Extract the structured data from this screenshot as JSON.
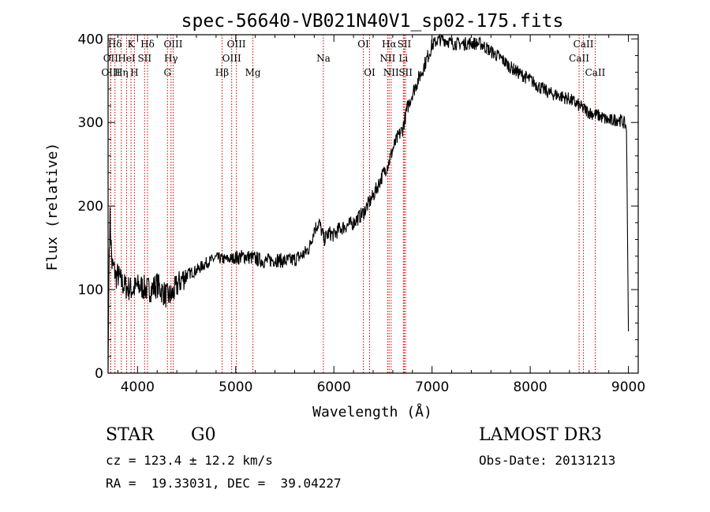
{
  "chart_data": {
    "type": "line",
    "title": "spec-56640-VB021N40V1_sp02-175.fits",
    "xlabel": "Wavelength (Å)",
    "ylabel": "Flux (relative)",
    "xlim": [
      3700,
      9100
    ],
    "ylim": [
      0,
      405
    ],
    "xticks": [
      4000,
      5000,
      6000,
      7000,
      8000,
      9000
    ],
    "yticks": [
      0,
      100,
      200,
      300,
      400
    ],
    "grid": false,
    "series": [
      {
        "name": "spectrum",
        "color": "#000000",
        "x": [
          3700,
          3710,
          3720,
          3740,
          3760,
          3780,
          3800,
          3830,
          3860,
          3900,
          3950,
          4000,
          4050,
          4100,
          4150,
          4200,
          4250,
          4300,
          4350,
          4400,
          4450,
          4500,
          4600,
          4700,
          4800,
          4900,
          5000,
          5100,
          5200,
          5300,
          5400,
          5500,
          5600,
          5700,
          5750,
          5800,
          5850,
          5900,
          5950,
          6000,
          6050,
          6100,
          6200,
          6300,
          6400,
          6500,
          6560,
          6600,
          6650,
          6700,
          6750,
          6800,
          6900,
          7000,
          7050,
          7100,
          7150,
          7200,
          7300,
          7400,
          7500,
          7600,
          7700,
          7800,
          7900,
          8000,
          8100,
          8200,
          8300,
          8400,
          8500,
          8600,
          8700,
          8800,
          8900,
          8950,
          8980,
          9000
        ],
        "y": [
          5,
          140,
          185,
          130,
          125,
          115,
          118,
          110,
          105,
          102,
          100,
          104,
          103,
          100,
          101,
          106,
          98,
          92,
          93,
          104,
          112,
          118,
          123,
          132,
          138,
          136,
          138,
          140,
          137,
          134,
          136,
          134,
          136,
          143,
          150,
          172,
          180,
          160,
          168,
          165,
          172,
          175,
          180,
          192,
          212,
          238,
          252,
          268,
          282,
          292,
          318,
          335,
          362,
          392,
          398,
          400,
          398,
          395,
          394,
          395,
          394,
          385,
          377,
          366,
          358,
          351,
          342,
          335,
          332,
          328,
          320,
          312,
          308,
          302,
          304,
          300,
          295,
          50
        ]
      }
    ],
    "spectral_lines": [
      {
        "label": "Hδ",
        "wavelength": 3770,
        "row": 1
      },
      {
        "label": "K",
        "wavelength": 3934,
        "row": 1
      },
      {
        "label": "Hδ",
        "wavelength": 4102,
        "row": 1
      },
      {
        "label": "OIII",
        "wavelength": 4363,
        "row": 1
      },
      {
        "label": "OIII",
        "wavelength": 5007,
        "row": 1
      },
      {
        "label": "OI",
        "wavelength": 6300,
        "row": 1
      },
      {
        "label": "Hα",
        "wavelength": 6563,
        "row": 1
      },
      {
        "label": "SII",
        "wavelength": 6717,
        "row": 1
      },
      {
        "label": "CaII",
        "wavelength": 8542,
        "row": 1
      },
      {
        "label": "OII",
        "wavelength": 3727,
        "row": 2
      },
      {
        "label": "HeI",
        "wavelength": 3889,
        "row": 2
      },
      {
        "label": "SII",
        "wavelength": 4072,
        "row": 2
      },
      {
        "label": "Hγ",
        "wavelength": 4341,
        "row": 2
      },
      {
        "label": "OIII",
        "wavelength": 4959,
        "row": 2
      },
      {
        "label": "Na",
        "wavelength": 5893,
        "row": 2
      },
      {
        "label": "NII",
        "wavelength": 6548,
        "row": 2
      },
      {
        "label": "Li",
        "wavelength": 6708,
        "row": 2
      },
      {
        "label": "CaII",
        "wavelength": 8498,
        "row": 2
      },
      {
        "label": "OIII",
        "wavelength": 3727,
        "row": 3
      },
      {
        "label": "Hη",
        "wavelength": 3835,
        "row": 3
      },
      {
        "label": "H",
        "wavelength": 3968,
        "row": 3
      },
      {
        "label": "G",
        "wavelength": 4305,
        "row": 3
      },
      {
        "label": "Hβ",
        "wavelength": 4861,
        "row": 3
      },
      {
        "label": "Mg",
        "wavelength": 5175,
        "row": 3
      },
      {
        "label": "OI",
        "wavelength": 6364,
        "row": 3
      },
      {
        "label": "NII",
        "wavelength": 6583,
        "row": 3
      },
      {
        "label": "SII",
        "wavelength": 6731,
        "row": 3
      },
      {
        "label": "CaII",
        "wavelength": 8662,
        "row": 3
      }
    ],
    "line_markers_color": "#cc0000"
  },
  "info": {
    "object_class": "STAR",
    "subclass": "G0",
    "survey": "LAMOST DR3",
    "redshift": "cz = 123.4 ± 12.2 km/s",
    "obs_date": "Obs-Date: 20131213",
    "coords": "RA =  19.33031, DEC =  39.04227"
  }
}
